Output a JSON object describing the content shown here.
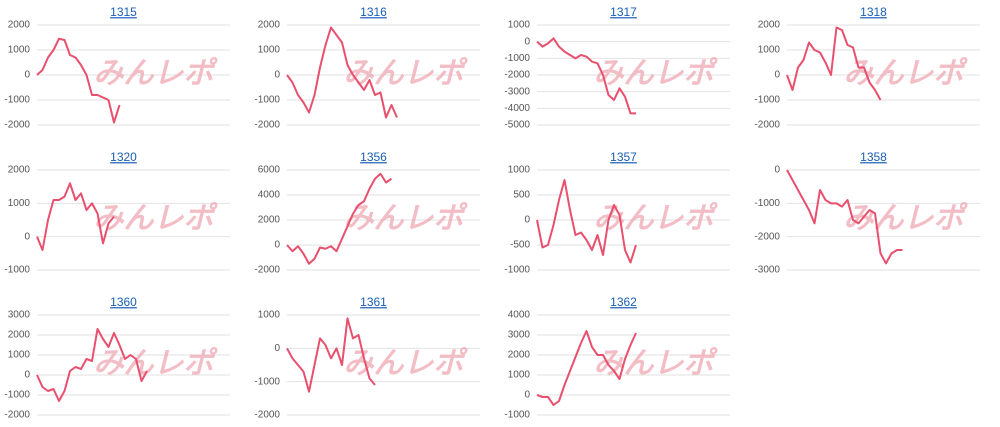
{
  "watermark": "みんレポ",
  "chart_data": [
    {
      "type": "line",
      "title": "1315",
      "color": "#e8506e",
      "ylim": [
        -2000,
        2000
      ],
      "yticks": [
        -2000,
        -1000,
        0,
        1000,
        2000
      ],
      "values": [
        0,
        200,
        700,
        1000,
        1450,
        1400,
        800,
        700,
        400,
        0,
        -800,
        -800,
        -900,
        -1000,
        -1900,
        -1200
      ]
    },
    {
      "type": "line",
      "title": "1316",
      "color": "#e8506e",
      "ylim": [
        -2000,
        2000
      ],
      "yticks": [
        -2000,
        -1000,
        0,
        1000,
        2000
      ],
      "values": [
        0,
        -300,
        -800,
        -1100,
        -1500,
        -800,
        300,
        1200,
        1900,
        1600,
        1300,
        400,
        0,
        -300,
        -600,
        -200,
        -800,
        -700,
        -1700,
        -1200,
        -1700
      ]
    },
    {
      "type": "line",
      "title": "1317",
      "color": "#e8506e",
      "ylim": [
        -5000,
        1000
      ],
      "yticks": [
        -5000,
        -4000,
        -3000,
        -2000,
        -1000,
        0,
        1000
      ],
      "values": [
        0,
        -300,
        -100,
        200,
        -300,
        -600,
        -800,
        -1000,
        -800,
        -900,
        -1200,
        -1300,
        -2000,
        -3200,
        -3500,
        -2800,
        -3300,
        -4300,
        -4300
      ]
    },
    {
      "type": "line",
      "title": "1318",
      "color": "#e8506e",
      "ylim": [
        -2000,
        2000
      ],
      "yticks": [
        -2000,
        -1000,
        0,
        1000,
        2000
      ],
      "values": [
        0,
        -600,
        300,
        600,
        1300,
        1000,
        900,
        500,
        0,
        1900,
        1800,
        1200,
        1100,
        300,
        300,
        -300,
        -600,
        -1000
      ]
    },
    {
      "type": "line",
      "title": "1320",
      "color": "#e8506e",
      "ylim": [
        -1000,
        2000
      ],
      "yticks": [
        -1000,
        0,
        1000,
        2000
      ],
      "values": [
        0,
        -400,
        500,
        1100,
        1100,
        1200,
        1600,
        1100,
        1300,
        800,
        1000,
        700,
        -200,
        400,
        600
      ]
    },
    {
      "type": "line",
      "title": "1356",
      "color": "#e8506e",
      "ylim": [
        -2000,
        6000
      ],
      "yticks": [
        -2000,
        0,
        2000,
        4000,
        6000
      ],
      "values": [
        0,
        -500,
        -100,
        -700,
        -1500,
        -1100,
        -200,
        -300,
        -100,
        -500,
        500,
        1500,
        2500,
        3200,
        3500,
        4500,
        5300,
        5700,
        5000,
        5300
      ]
    },
    {
      "type": "line",
      "title": "1357",
      "color": "#e8506e",
      "ylim": [
        -1000,
        1000
      ],
      "yticks": [
        -1000,
        -500,
        0,
        500,
        1000
      ],
      "values": [
        0,
        -550,
        -500,
        -100,
        400,
        800,
        200,
        -300,
        -250,
        -400,
        -600,
        -300,
        -700,
        0,
        300,
        100,
        -600,
        -850,
        -500
      ]
    },
    {
      "type": "line",
      "title": "1358",
      "color": "#e8506e",
      "ylim": [
        -3000,
        0
      ],
      "yticks": [
        -3000,
        -2000,
        -1000,
        0
      ],
      "values": [
        0,
        -300,
        -600,
        -900,
        -1200,
        -1600,
        -600,
        -900,
        -1000,
        -1000,
        -1100,
        -900,
        -1500,
        -1600,
        -1400,
        -1200,
        -1300,
        -2500,
        -2800,
        -2500,
        -2400,
        -2400
      ]
    },
    {
      "type": "line",
      "title": "1360",
      "color": "#e8506e",
      "ylim": [
        -2000,
        3000
      ],
      "yticks": [
        -2000,
        -1000,
        0,
        1000,
        2000,
        3000
      ],
      "values": [
        0,
        -600,
        -800,
        -700,
        -1300,
        -800,
        200,
        400,
        300,
        800,
        700,
        2300,
        1800,
        1400,
        2100,
        1500,
        800,
        1000,
        800,
        -300,
        200
      ]
    },
    {
      "type": "line",
      "title": "1361",
      "color": "#e8506e",
      "ylim": [
        -2000,
        1000
      ],
      "yticks": [
        -2000,
        -1000,
        0,
        1000
      ],
      "values": [
        0,
        -300,
        -500,
        -700,
        -1300,
        -500,
        300,
        100,
        -300,
        0,
        -500,
        900,
        300,
        400,
        -300,
        -900,
        -1100
      ]
    },
    {
      "type": "line",
      "title": "1362",
      "color": "#e8506e",
      "ylim": [
        -1000,
        4000
      ],
      "yticks": [
        -1000,
        0,
        1000,
        2000,
        3000,
        4000
      ],
      "values": [
        0,
        -100,
        -100,
        -500,
        -300,
        500,
        1200,
        1900,
        2600,
        3200,
        2400,
        2000,
        2000,
        1500,
        1200,
        800,
        1800,
        2500,
        3100
      ]
    }
  ]
}
